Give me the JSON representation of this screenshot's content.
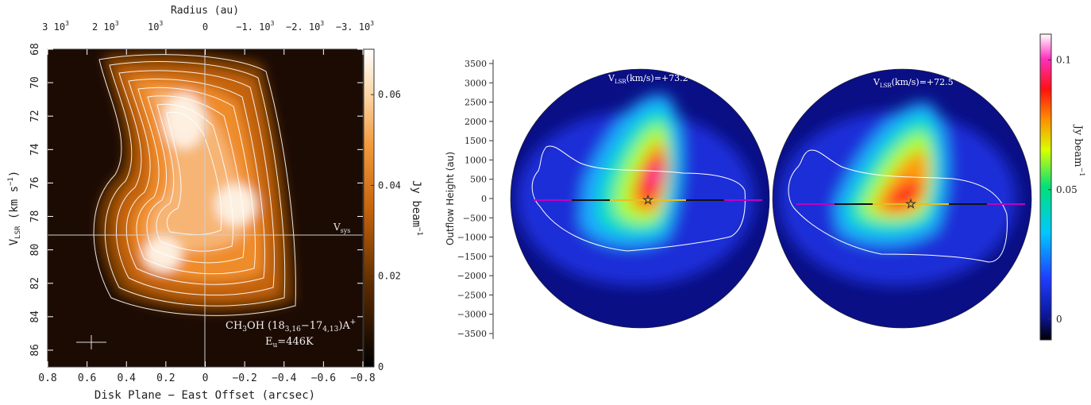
{
  "chart_data": [
    {
      "type": "heatmap",
      "title": "",
      "top_axis": {
        "label": "Radius (au)",
        "ticks": [
          {
            "value": 3000,
            "mant": "3",
            "exp": "3"
          },
          {
            "value": 2000,
            "mant": "2",
            "exp": "3"
          },
          {
            "value": 1000,
            "mant": "",
            "exp": "3"
          },
          {
            "value": 0,
            "mant": "0",
            "exp": ""
          },
          {
            "value": -1000,
            "mant": "−1.",
            "exp": "3"
          },
          {
            "value": -2000,
            "mant": "−2.",
            "exp": "3"
          },
          {
            "value": -3000,
            "mant": "−3.",
            "exp": "3"
          }
        ]
      },
      "xlabel": "Disk Plane − East Offset (arcsec)",
      "x_ticks": [
        "0.8",
        "0.6",
        "0.4",
        "0.2",
        "0",
        "−0.2",
        "−0.4",
        "−0.6",
        "−0.8"
      ],
      "xlim": [
        0.8,
        -0.8
      ],
      "ylabel": {
        "base": "V",
        "sub": "LSR",
        "rest": " (km s",
        "sup": "−1",
        "close": ")"
      },
      "y_ticks": [
        "68",
        "70",
        "72",
        "74",
        "76",
        "78",
        "80",
        "82",
        "84",
        "86"
      ],
      "ylim": [
        68,
        87
      ],
      "vsys": {
        "value": 79,
        "label": "V",
        "sub": "sys"
      },
      "colorbar": {
        "label": "Jy beam",
        "sup": "−1",
        "ticks": [
          "0",
          "0.02",
          "0.04",
          "0.06"
        ],
        "range": [
          0,
          0.07
        ]
      },
      "annotation": {
        "line1": {
          "a": "CH",
          "s1": "3",
          "b": "OH (18",
          "s2": "3,16",
          "c": "−17",
          "s3": "4,13",
          "d": ")A",
          "sup": "+"
        },
        "line2": {
          "a": "E",
          "s1": "u",
          "b": "=446K"
        }
      },
      "emission_peaks": [
        {
          "x_arcsec": 0.2,
          "v_kms": 80.3,
          "intensity_jy": 0.066
        },
        {
          "x_arcsec": 0.05,
          "v_kms": 72.8,
          "intensity_jy": 0.07
        },
        {
          "x_arcsec": -0.15,
          "v_kms": 77.3,
          "intensity_jy": 0.068
        }
      ]
    },
    {
      "type": "heatmap",
      "ylabel": "Outflow Height (au)",
      "y_ticks": [
        "3500",
        "3000",
        "2500",
        "2000",
        "1500",
        "1000",
        "500",
        "0",
        "−500",
        "−1000",
        "−1500",
        "−2000",
        "−2500",
        "−3000",
        "−3500"
      ],
      "ylim": [
        -3500,
        3500
      ],
      "panels": [
        {
          "label": {
            "base": "V",
            "sub": "LSR",
            "rest": "(km/s)=+73.2"
          },
          "velocity_kms": 73.2
        },
        {
          "label": {
            "base": "V",
            "sub": "LSR",
            "rest": "(km/s)=+72.5"
          },
          "velocity_kms": 72.5
        }
      ],
      "colorbar": {
        "label": "Jy beam",
        "sup": "−1",
        "ticks": [
          "0.1",
          "0.05",
          "0"
        ],
        "range": [
          -0.008,
          0.11
        ]
      }
    }
  ]
}
